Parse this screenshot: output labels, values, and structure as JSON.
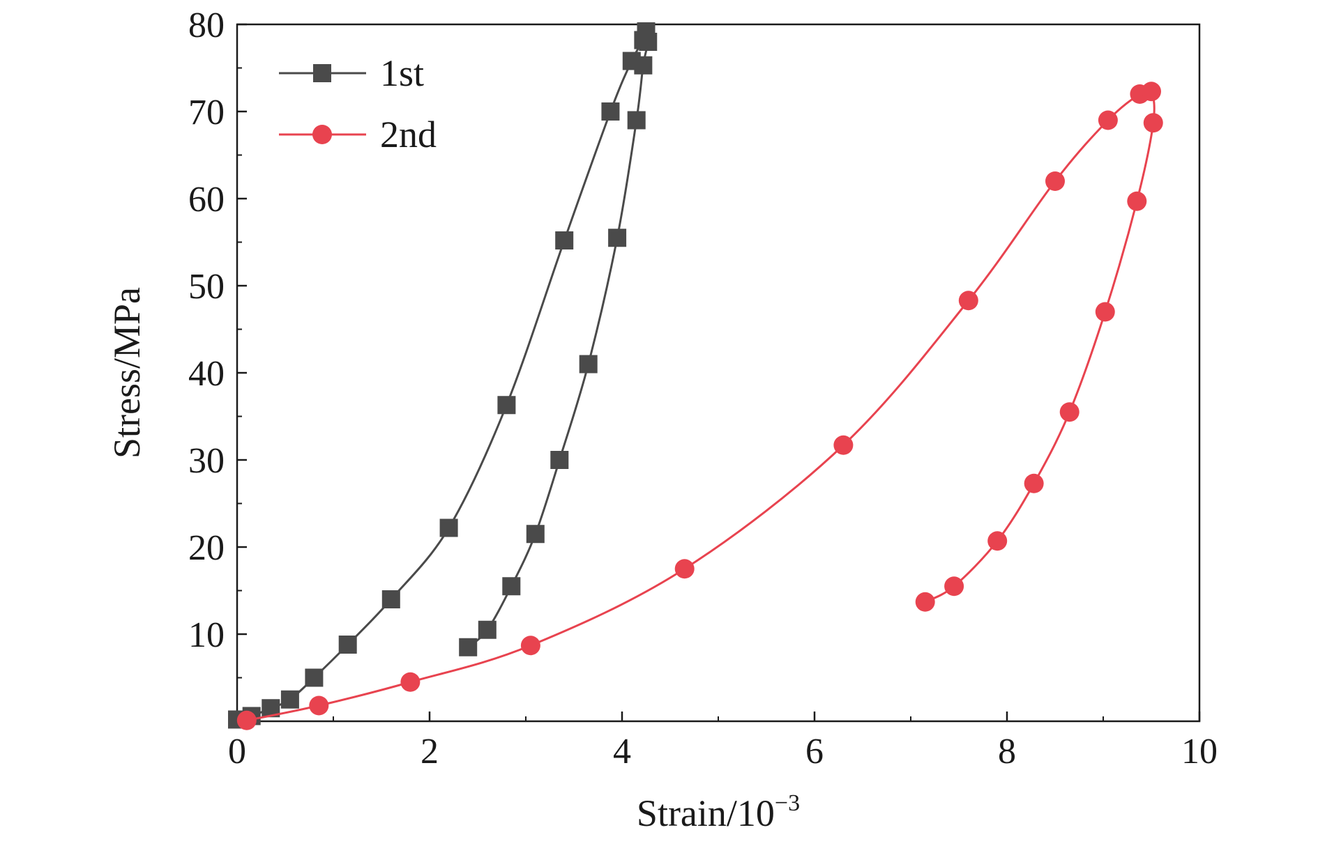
{
  "chart_data": {
    "type": "line",
    "xlabel_base": "Strain/10",
    "xlabel_exp": "−3",
    "ylabel": "Stress/MPa",
    "xlim": [
      0,
      10
    ],
    "ylim": [
      0,
      80
    ],
    "xticks": [
      0,
      2,
      4,
      6,
      8,
      10
    ],
    "yticks": [
      10,
      20,
      30,
      40,
      50,
      60,
      70,
      80
    ],
    "grid": false,
    "legend_position": "top-left",
    "series": [
      {
        "name": "1st",
        "color": "#4a4a4a",
        "marker": "square",
        "x": [
          0.0,
          0.15,
          0.35,
          0.55,
          0.8,
          1.15,
          1.6,
          2.2,
          2.8,
          3.4,
          3.88,
          4.1,
          4.22,
          4.25,
          4.27,
          4.22,
          4.15,
          3.95,
          3.65,
          3.35,
          3.1,
          2.85,
          2.6,
          2.4
        ],
        "y": [
          0.2,
          0.6,
          1.5,
          2.5,
          5.0,
          8.8,
          14.0,
          22.2,
          36.3,
          55.2,
          70.0,
          75.8,
          78.2,
          79.2,
          78.0,
          75.3,
          69.0,
          55.5,
          41.0,
          30.0,
          21.5,
          15.5,
          10.5,
          8.5
        ]
      },
      {
        "name": "2nd",
        "color": "#e8434f",
        "marker": "circle",
        "x": [
          0.1,
          0.85,
          1.8,
          3.05,
          4.65,
          6.3,
          7.6,
          8.5,
          9.05,
          9.38,
          9.5,
          9.52,
          9.35,
          9.02,
          8.65,
          8.28,
          7.9,
          7.45,
          7.15
        ],
        "y": [
          0.1,
          1.8,
          4.5,
          8.7,
          17.5,
          31.7,
          48.3,
          62.0,
          69.0,
          72.0,
          72.3,
          68.7,
          59.7,
          47.0,
          35.5,
          27.3,
          20.7,
          15.5,
          13.7
        ]
      }
    ]
  }
}
